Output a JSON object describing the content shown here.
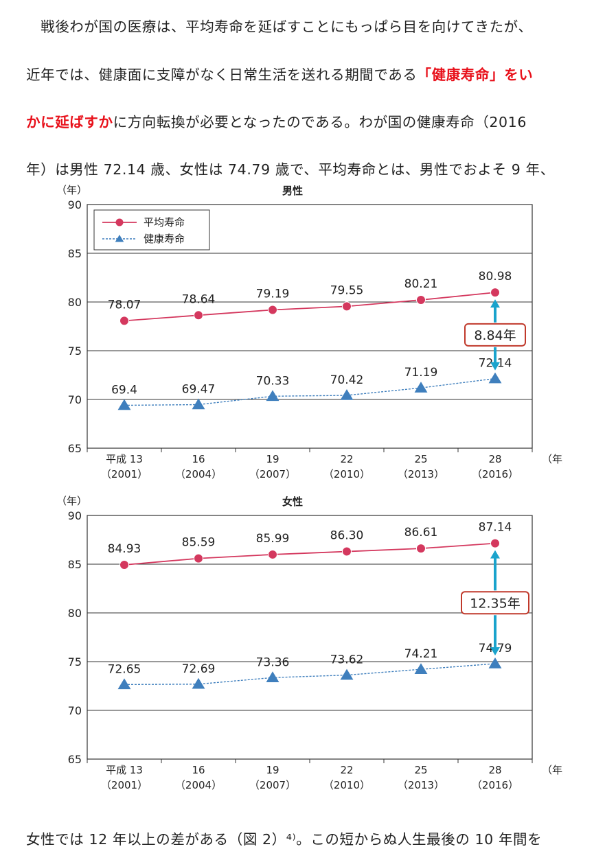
{
  "paragraph": {
    "line1": "　戦後わが国の医療は、平均寿命を延ばすことにもっぱら目を向けてきたが、",
    "line2_plain": "近年では、健康面に支障がなく日常生活を送れる期間である",
    "line2_red": "「健康寿命」をい",
    "line3_red": "かに延ばすか",
    "line3_plain": "に方向転換が必要となったのである。わが国の健康寿命（2016",
    "line4": "年）は男性 72.14 歳、女性は 74.79 歳で、平均寿命とは、男性でおよそ 9 年、",
    "line5": "女性では 12 年以上の差がある（図 2）⁴⁾。この短からぬ人生最後の 10 年間を"
  },
  "colors": {
    "life": "#d4385e",
    "health": "#3f7fbd",
    "arrow": "#1aa3cc",
    "badge": "#c0392b",
    "emphasis": "#e8101a"
  },
  "chart_data": [
    {
      "type": "line",
      "title": "男性",
      "ylabel": "（年）",
      "xlabel_unit": "（年）",
      "ylim": [
        65,
        90
      ],
      "yticks": [
        65,
        70,
        75,
        80,
        85,
        90
      ],
      "categories": [
        "平成 13",
        "16",
        "19",
        "22",
        "25",
        "28"
      ],
      "categories_sub": [
        "（2001）",
        "（2004）",
        "（2007）",
        "（2010）",
        "（2013）",
        "（2016）"
      ],
      "series": [
        {
          "name": "平均寿命",
          "values": [
            78.07,
            78.64,
            79.19,
            79.55,
            80.21,
            80.98
          ],
          "labels": [
            "78.07",
            "78.64",
            "79.19",
            "79.55",
            "80.21",
            "80.98"
          ]
        },
        {
          "name": "健康寿命",
          "values": [
            69.4,
            69.47,
            70.33,
            70.42,
            71.19,
            72.14
          ],
          "labels": [
            "69.4",
            "69.47",
            "70.33",
            "70.42",
            "71.19",
            "72.14"
          ]
        }
      ],
      "gap_label": "8.84年",
      "legend": "top-left",
      "grid": true
    },
    {
      "type": "line",
      "title": "女性",
      "ylabel": "（年）",
      "xlabel_unit": "（年）",
      "ylim": [
        65,
        90
      ],
      "yticks": [
        65,
        70,
        75,
        80,
        85,
        90
      ],
      "categories": [
        "平成 13",
        "16",
        "19",
        "22",
        "25",
        "28"
      ],
      "categories_sub": [
        "（2001）",
        "（2004）",
        "（2007）",
        "（2010）",
        "（2013）",
        "（2016）"
      ],
      "series": [
        {
          "name": "平均寿命",
          "values": [
            84.93,
            85.59,
            85.99,
            86.3,
            86.61,
            87.14
          ],
          "labels": [
            "84.93",
            "85.59",
            "85.99",
            "86.30",
            "86.61",
            "87.14"
          ]
        },
        {
          "name": "健康寿命",
          "values": [
            72.65,
            72.69,
            73.36,
            73.62,
            74.21,
            74.79
          ],
          "labels": [
            "72.65",
            "72.69",
            "73.36",
            "73.62",
            "74.21",
            "74.79"
          ]
        }
      ],
      "gap_label": "12.35年",
      "legend": "none",
      "grid": true
    }
  ]
}
